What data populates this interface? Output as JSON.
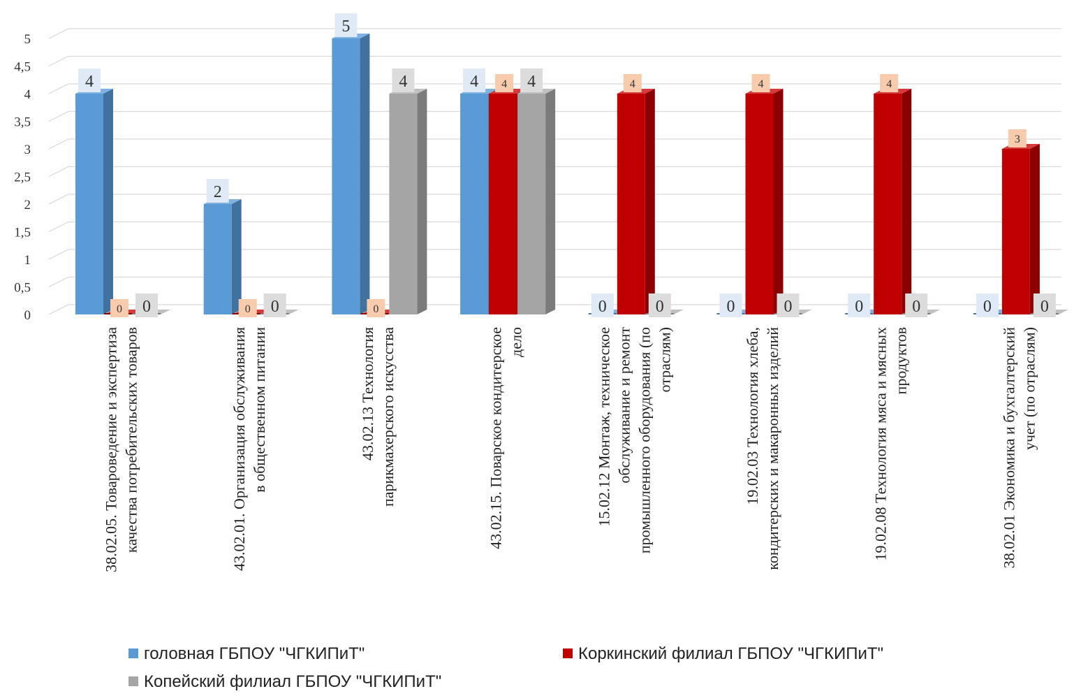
{
  "chart_data": {
    "type": "bar",
    "style": "3d-clustered",
    "categories": [
      [
        "38.02.05.  Товароведение и экспертиза",
        "качества потребительских товаров"
      ],
      [
        "43.02.01.  Организация обслуживания",
        "в общественном питании"
      ],
      [
        "43.02.13  Технология",
        "парикмахерского искусства"
      ],
      [
        "43.02.15.  Поварское кондитерское",
        "дело"
      ],
      [
        "15.02.12 Монтаж, техническое",
        "обслуживание и ремонт",
        "промышленного оборудования  (по",
        "отраслям)"
      ],
      [
        "19.02.03  Технология хлеба,",
        "кондитерских и макаронных изделий"
      ],
      [
        "19.02.08 Технология мяса и мясных",
        "продуктов"
      ],
      [
        "38.02.01  Экономика и бухгалтерский",
        "учет (по отраслям)"
      ]
    ],
    "series": [
      {
        "name": "головная ГБПОУ \"ЧГКИПиТ\"",
        "values": [
          4,
          2,
          5,
          4,
          0,
          0,
          0,
          0
        ],
        "color": "#5b9bd5",
        "side": "#41729f",
        "top": "#7fb2e0",
        "label_bg": "#dfeaf6"
      },
      {
        "name": "Коркинский филиал ГБПОУ \"ЧГКИПиТ\"",
        "values": [
          0,
          0,
          0,
          4,
          4,
          4,
          4,
          3
        ],
        "color": "#c00000",
        "side": "#8b0000",
        "top": "#d63a3a",
        "label_bg": "#f8cbad"
      },
      {
        "name": "Копейский филиал ГБПОУ \"ЧГКИПиТ\"",
        "values": [
          0,
          0,
          4,
          4,
          0,
          0,
          0,
          0
        ],
        "color": "#a5a5a5",
        "side": "#7b7b7b",
        "top": "#c0c0c0",
        "label_bg": "#dcdcdc"
      }
    ],
    "y_ticks": [
      "0",
      "0,5",
      "1",
      "1,5",
      "2",
      "2,5",
      "3",
      "3,5",
      "4",
      "4,5",
      "5"
    ],
    "ylim": [
      0,
      5
    ],
    "grid": true,
    "legend_position": "bottom",
    "title": "",
    "xlabel": "",
    "ylabel": ""
  }
}
